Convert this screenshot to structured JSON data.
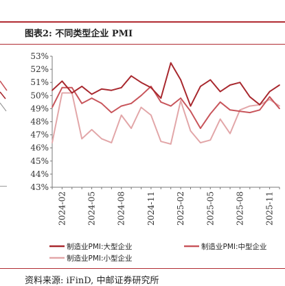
{
  "header": {
    "title": "图表2: 不同类型企业 PMI"
  },
  "footer": {
    "source": "资料来源: iFinD, 中邮证券研究所"
  },
  "chart_data": {
    "type": "line",
    "title": "图表2: 不同类型企业 PMI",
    "xlabel": "",
    "ylabel": "",
    "ylim": [
      43,
      53
    ],
    "yticks": [
      "43%",
      "44%",
      "45%",
      "46%",
      "47%",
      "48%",
      "49%",
      "50%",
      "51%",
      "52%",
      "53%"
    ],
    "x_tick_labels": [
      "2024-02",
      "2024-05",
      "2024-08",
      "2024-11",
      "2025-02",
      "2025-05",
      "2025-08",
      "2025-11"
    ],
    "x": [
      "2024-01",
      "2024-02",
      "2024-03",
      "2024-04",
      "2024-05",
      "2024-06",
      "2024-07",
      "2024-08",
      "2024-09",
      "2024-10",
      "2024-11",
      "2024-12",
      "2025-01",
      "2025-02",
      "2025-03",
      "2025-04",
      "2025-05",
      "2025-06",
      "2025-07",
      "2025-08",
      "2025-09",
      "2025-10",
      "2025-11",
      "2025-12"
    ],
    "series": [
      {
        "name": "制造业PMI:大型企业",
        "color": "#a8282e",
        "values": [
          50.4,
          51.1,
          50.2,
          50.7,
          50.1,
          50.5,
          50.4,
          50.6,
          51.5,
          51.0,
          50.6,
          49.8,
          52.5,
          51.2,
          49.2,
          50.7,
          51.2,
          50.3,
          50.8,
          51.0,
          49.9,
          49.3,
          50.3,
          50.8
        ]
      },
      {
        "name": "制造业PMI:中型企业",
        "color": "#c8555b",
        "values": [
          49.1,
          50.6,
          50.6,
          49.4,
          49.8,
          49.4,
          48.7,
          49.2,
          49.4,
          50.0,
          50.7,
          49.5,
          49.2,
          49.8,
          48.8,
          47.5,
          48.6,
          49.5,
          48.9,
          48.8,
          48.7,
          48.9,
          49.9,
          49.0
        ]
      },
      {
        "name": "制造业PMI:小型企业",
        "color": "#e2a6a8",
        "values": [
          46.4,
          50.2,
          50.2,
          46.7,
          47.4,
          46.7,
          46.4,
          48.5,
          47.5,
          49.1,
          48.5,
          46.5,
          46.3,
          49.6,
          47.3,
          46.4,
          46.6,
          48.2,
          47.1,
          48.9,
          49.2,
          49.3,
          49.7,
          49.2
        ]
      }
    ],
    "grid": false,
    "legend_position": "bottom"
  }
}
